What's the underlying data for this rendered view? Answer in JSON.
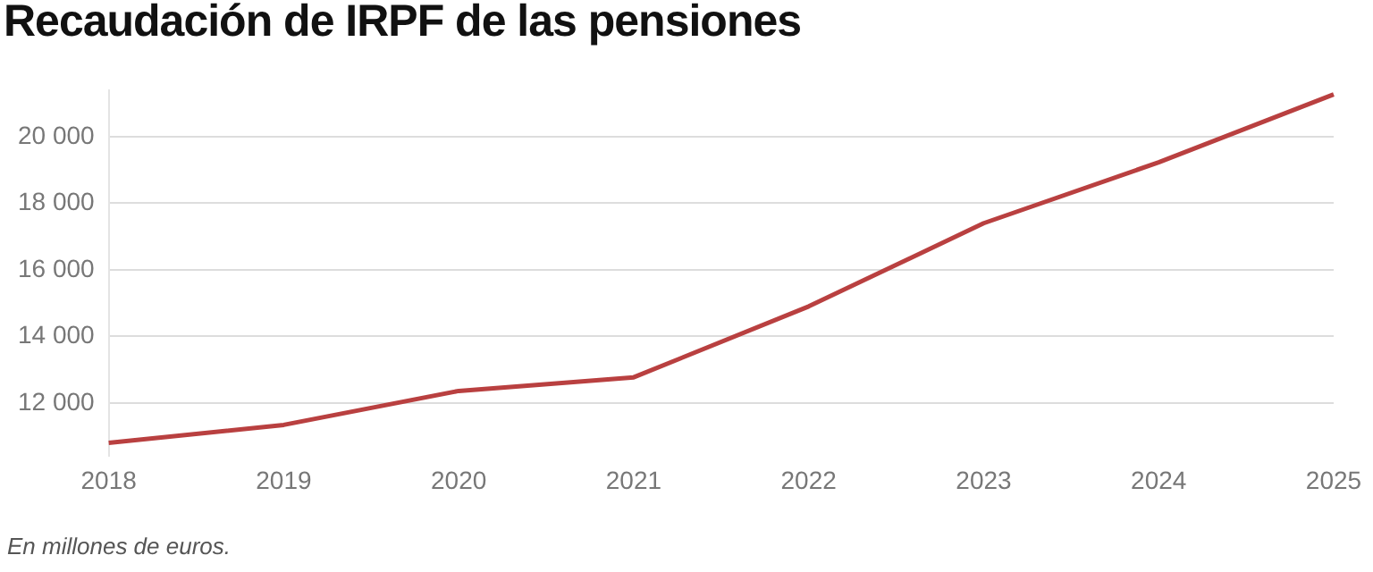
{
  "chart_data": {
    "type": "line",
    "title": "Recaudación de IRPF de las pensiones",
    "annotations": [
      "En millones de euros."
    ],
    "categories": [
      "2018",
      "2019",
      "2020",
      "2021",
      "2022",
      "2023",
      "2024",
      "2025"
    ],
    "series": [
      {
        "color": "#b94040",
        "values": [
          10800,
          11340,
          12360,
          12770,
          14900,
          17400,
          19230,
          21270
        ]
      }
    ],
    "ylim": [
      10400,
      21400
    ],
    "yticks": [
      {
        "value": 12000,
        "label": "12 000"
      },
      {
        "value": 14000,
        "label": "14 000"
      },
      {
        "value": 16000,
        "label": "16 000"
      },
      {
        "value": 18000,
        "label": "18 000"
      },
      {
        "value": 20000,
        "label": "20 000"
      }
    ],
    "grid": "y",
    "legend": false,
    "marker": "none",
    "line_style": "solid"
  }
}
